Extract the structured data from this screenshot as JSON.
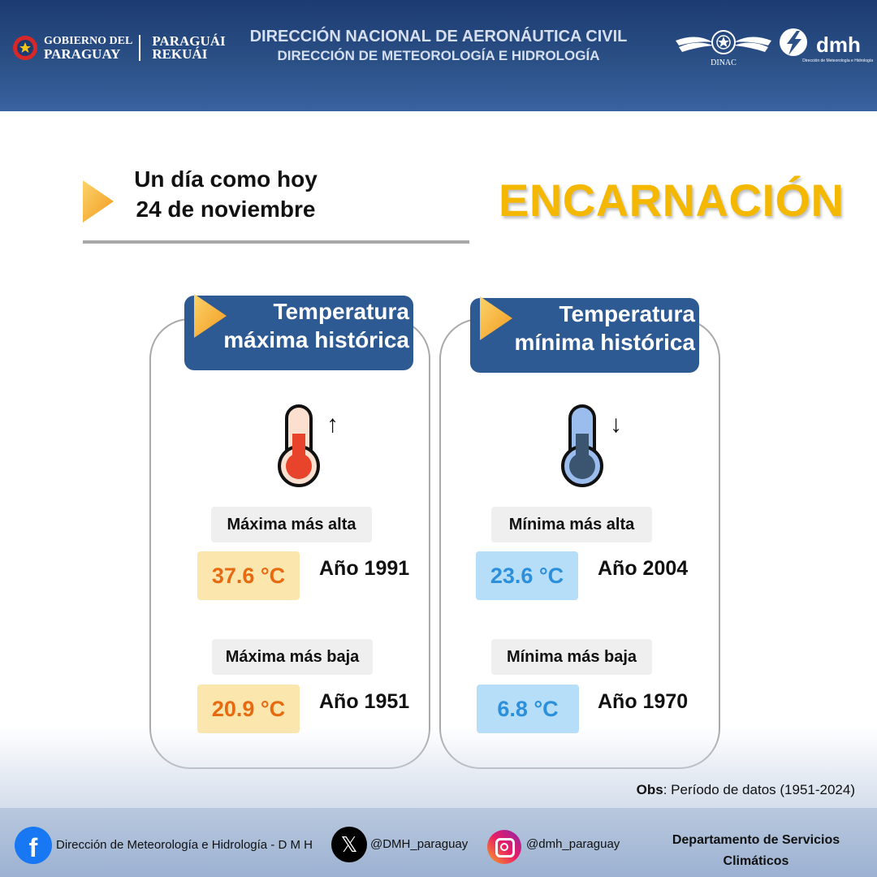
{
  "header": {
    "gov_logo_line1": "GOBIERNO DEL",
    "gov_logo_line2": "PARAGUAY",
    "gov_logo_line3": "PARAGUÁI",
    "gov_logo_line4": "REKUÁI",
    "title_line1": "DIRECCIÓN NACIONAL DE AERONÁUTICA CIVIL",
    "title_line2": "DIRECCIÓN DE METEOROLOGÍA  E HIDROLOGÍA",
    "dinac_label": "DINAC",
    "dmh_label": "dmh",
    "dmh_sub": "Dirección de Meteorología e Hidrología"
  },
  "intro": {
    "line1": "Un día como hoy",
    "line2": "24 de noviembre"
  },
  "city": "ENCARNACIÓN",
  "max_card": {
    "title_line1": "Temperatura",
    "title_line2": "máxima histórica",
    "high_label": "Máxima más alta",
    "high_value": "37.6 °C",
    "high_year": "Año 1991",
    "low_label": "Máxima más baja",
    "low_value": "20.9 °C",
    "low_year": "Año 1951"
  },
  "min_card": {
    "title_line1": "Temperatura",
    "title_line2": "mínima histórica",
    "high_label": "Mínima más alta",
    "high_value": "23.6 °C",
    "high_year": "Año 2004",
    "low_label": "Mínima más baja",
    "low_value": "6.8 °C",
    "low_year": "Año 1970"
  },
  "obs": {
    "label": "Obs",
    "text": ": Período de datos (1951-2024)"
  },
  "footer": {
    "facebook": "Dirección de Meteorología e Hidrología - D M H",
    "x_handle": "@DMH_paraguay",
    "instagram": "@dmh_paraguay",
    "dept_line1": "Departamento de Servicios",
    "dept_line2": "Climáticos"
  },
  "colors": {
    "accent_yellow": "#f5b800",
    "header_blue": "#2c5288",
    "card_head_blue": "#2e5a94",
    "hot_text": "#e86a10",
    "cold_text": "#2c8fdb"
  },
  "icons": [
    "gov-emblem-icon",
    "dinac-wings-icon",
    "dmh-logo-icon",
    "play-arrow-icon",
    "thermometer-hot-icon",
    "thermometer-cold-icon",
    "arrow-up-icon",
    "arrow-down-icon",
    "facebook-icon",
    "x-icon",
    "instagram-icon"
  ]
}
